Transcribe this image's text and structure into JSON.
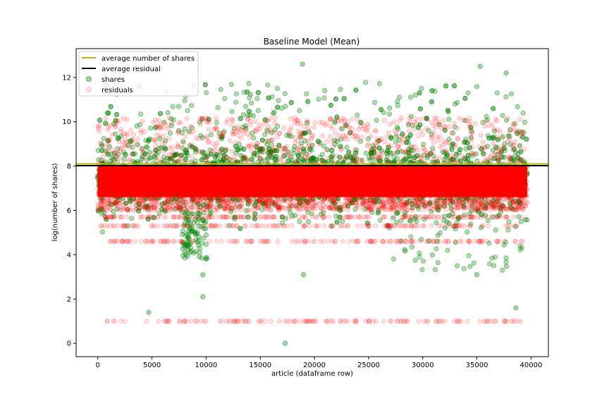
{
  "chart_data": {
    "type": "scatter",
    "title": "Baseline Model (Mean)",
    "xlabel": "article (dataframe row)",
    "ylabel": "log(number of shares)",
    "xlim": [
      -2000,
      41600
    ],
    "ylim": [
      -0.6,
      13.3
    ],
    "xticks": [
      0,
      5000,
      10000,
      15000,
      20000,
      25000,
      30000,
      35000,
      40000
    ],
    "yticks": [
      0,
      2,
      4,
      6,
      8,
      10,
      12
    ],
    "n_points": 39644,
    "grid": false,
    "legend_position": "upper left",
    "lines": [
      {
        "name": "average number of shares",
        "y": 8.1,
        "color": "#bfbf00"
      },
      {
        "name": "average residual",
        "y": 8.02,
        "color": "#000000"
      }
    ],
    "scatter": [
      {
        "name": "shares",
        "color": "#008000",
        "alpha": 0.3,
        "typical_range": [
          6.5,
          10.5
        ],
        "outliers": [
          {
            "x": 4700,
            "y": 1.4
          },
          {
            "x": 9700,
            "y": 2.1
          },
          {
            "x": 9700,
            "y": 3.1
          },
          {
            "x": 17300,
            "y": 0.0
          },
          {
            "x": 19000,
            "y": 3.1
          },
          {
            "x": 38600,
            "y": 1.6
          },
          {
            "x": 35000,
            "y": 3.1
          },
          {
            "x": 18900,
            "y": 12.6
          },
          {
            "x": 35300,
            "y": 12.5
          },
          {
            "x": 37700,
            "y": 12.2
          }
        ]
      },
      {
        "name": "residuals",
        "color": "#ff0000",
        "alpha": 0.1,
        "dense_band": [
          6.0,
          8.0
        ],
        "horizontal_bands": [
          5.7,
          5.3,
          4.6,
          1.0
        ]
      }
    ]
  }
}
